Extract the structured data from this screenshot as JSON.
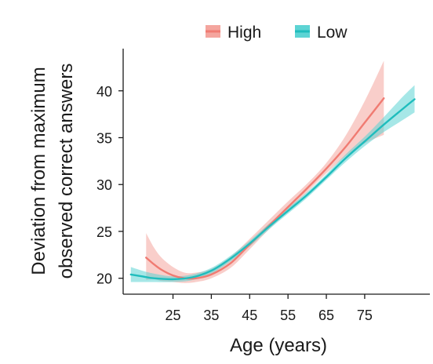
{
  "chart_data": {
    "type": "line",
    "title": "",
    "xlabel": "Age (years)",
    "ylabel_lines": [
      "Deviation from maximum",
      "observed correct answers"
    ],
    "xlim": [
      12,
      92
    ],
    "ylim": [
      18.3,
      44.5
    ],
    "x_ticks": [
      25,
      35,
      45,
      55,
      65,
      75
    ],
    "y_ticks": [
      20,
      25,
      30,
      35,
      40
    ],
    "grid": false,
    "legend_position": "top",
    "series": [
      {
        "name": "High",
        "color": "#f07b72",
        "band_color": "#f4a59e",
        "x": [
          18,
          20,
          22,
          25,
          28,
          31,
          35,
          40,
          45,
          50,
          55,
          60,
          65,
          70,
          75,
          80
        ],
        "y": [
          22.2,
          21.5,
          20.9,
          20.3,
          20.0,
          20.0,
          20.4,
          21.6,
          23.6,
          25.6,
          27.6,
          29.6,
          31.7,
          34.0,
          36.6,
          39.2
        ],
        "lower": [
          19.8,
          19.9,
          19.7,
          19.6,
          19.5,
          19.6,
          20.0,
          21.1,
          23.1,
          25.2,
          27.2,
          29.2,
          31.2,
          33.0,
          34.4,
          35.3
        ],
        "upper": [
          24.8,
          23.3,
          22.2,
          21.2,
          20.6,
          20.6,
          21.0,
          22.3,
          24.2,
          26.2,
          28.2,
          30.1,
          32.3,
          35.2,
          38.9,
          43.2
        ]
      },
      {
        "name": "Low",
        "color": "#1fbdbd",
        "band_color": "#5dd4d4",
        "x": [
          14,
          17,
          20,
          25,
          30,
          35,
          40,
          45,
          50,
          55,
          60,
          65,
          70,
          75,
          80,
          85,
          88
        ],
        "y": [
          20.4,
          20.2,
          20.0,
          19.9,
          20.1,
          20.8,
          22.1,
          23.7,
          25.5,
          27.2,
          28.9,
          30.8,
          32.8,
          34.6,
          36.4,
          38.1,
          39.1
        ],
        "lower": [
          19.6,
          19.6,
          19.6,
          19.6,
          19.8,
          20.5,
          21.8,
          23.4,
          25.2,
          26.9,
          28.6,
          30.5,
          32.4,
          34.1,
          35.6,
          36.9,
          37.7
        ],
        "upper": [
          21.2,
          20.8,
          20.5,
          20.2,
          20.4,
          21.1,
          22.4,
          24.0,
          25.8,
          27.5,
          29.2,
          31.1,
          33.2,
          35.1,
          37.2,
          39.4,
          40.6
        ]
      }
    ]
  }
}
